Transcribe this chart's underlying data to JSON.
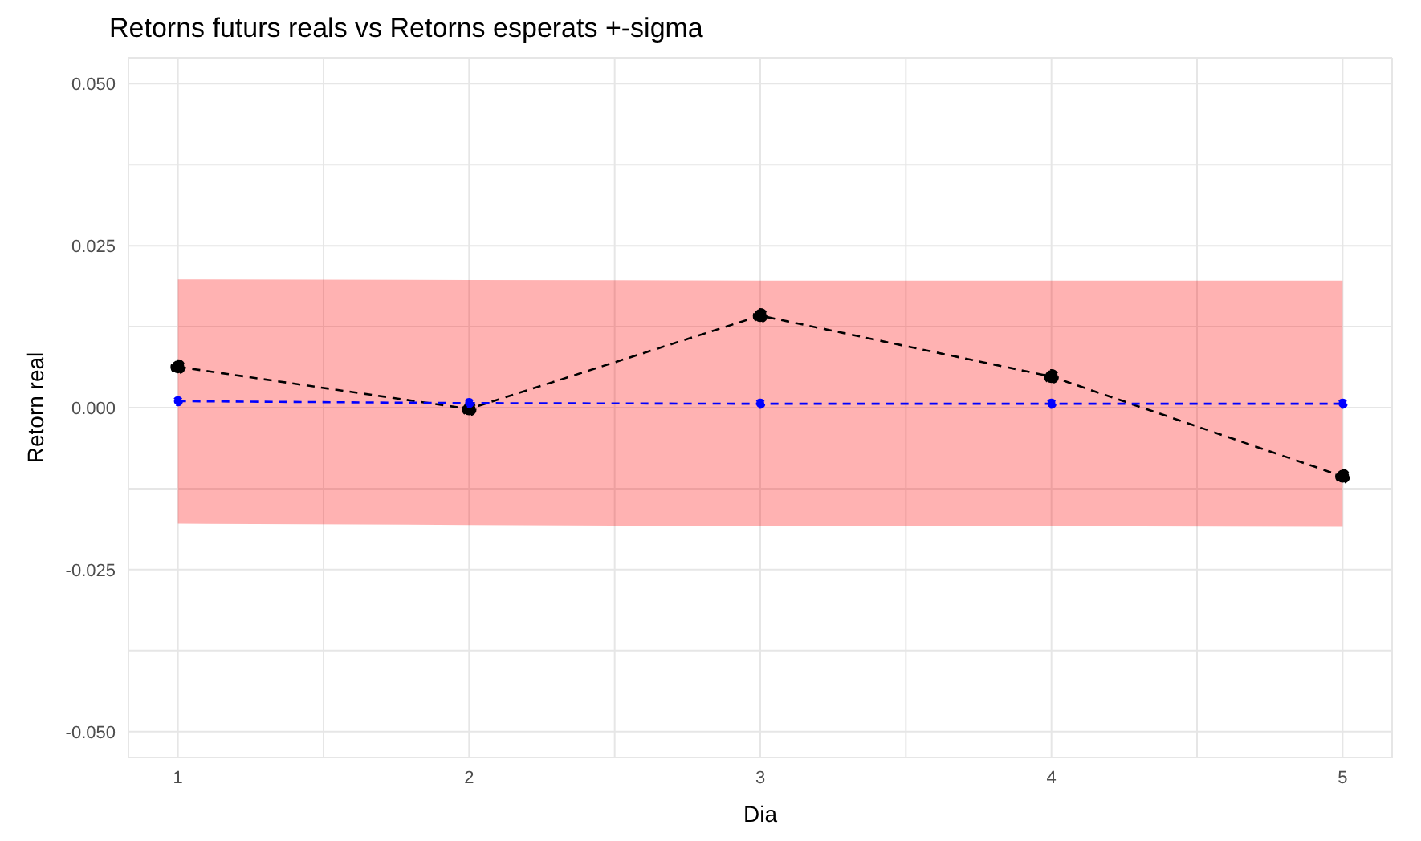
{
  "chart_data": {
    "type": "line",
    "title": "Retorns futurs reals vs Retorns esperats +-sigma",
    "xlabel": "Dia",
    "ylabel": "Retorn real",
    "x": [
      1,
      2,
      3,
      4,
      5
    ],
    "series": [
      {
        "color": "#000000",
        "values": [
          0.0063,
          -0.0002,
          0.0142,
          0.0048,
          -0.0106
        ],
        "marker": "circle",
        "line_style": "dashed"
      },
      {
        "color": "#0000ff",
        "values": [
          0.001,
          0.0007,
          0.0006,
          0.0006,
          0.0006
        ],
        "marker": "circle",
        "line_style": "dashed",
        "lower": [
          -0.0179,
          -0.0181,
          -0.0183,
          -0.0183,
          -0.0184
        ],
        "upper": [
          0.0198,
          0.0197,
          0.0196,
          0.0196,
          0.0196
        ]
      }
    ],
    "xlim": [
      0.83,
      5.17
    ],
    "xticks": [
      1,
      {
        "value": 1.5,
        "label": null
      },
      2,
      {
        "value": 2.5,
        "label": null
      },
      3,
      {
        "value": 3.5,
        "label": null
      },
      4,
      {
        "value": 4.5,
        "label": null
      },
      5
    ],
    "ylim": [
      -0.054,
      0.054
    ],
    "yticks": [
      {
        "value": -0.05,
        "label": "-0.050"
      },
      {
        "value": -0.0375,
        "label": null
      },
      {
        "value": -0.025,
        "label": "-0.025"
      },
      {
        "value": -0.0125,
        "label": null
      },
      {
        "value": 0,
        "label": "0.000"
      },
      {
        "value": 0.0125,
        "label": null
      },
      {
        "value": 0.025,
        "label": "0.025"
      },
      {
        "value": 0.0375,
        "label": null
      },
      {
        "value": 0.05,
        "label": "0.050"
      }
    ],
    "grid": true,
    "legend": false
  }
}
